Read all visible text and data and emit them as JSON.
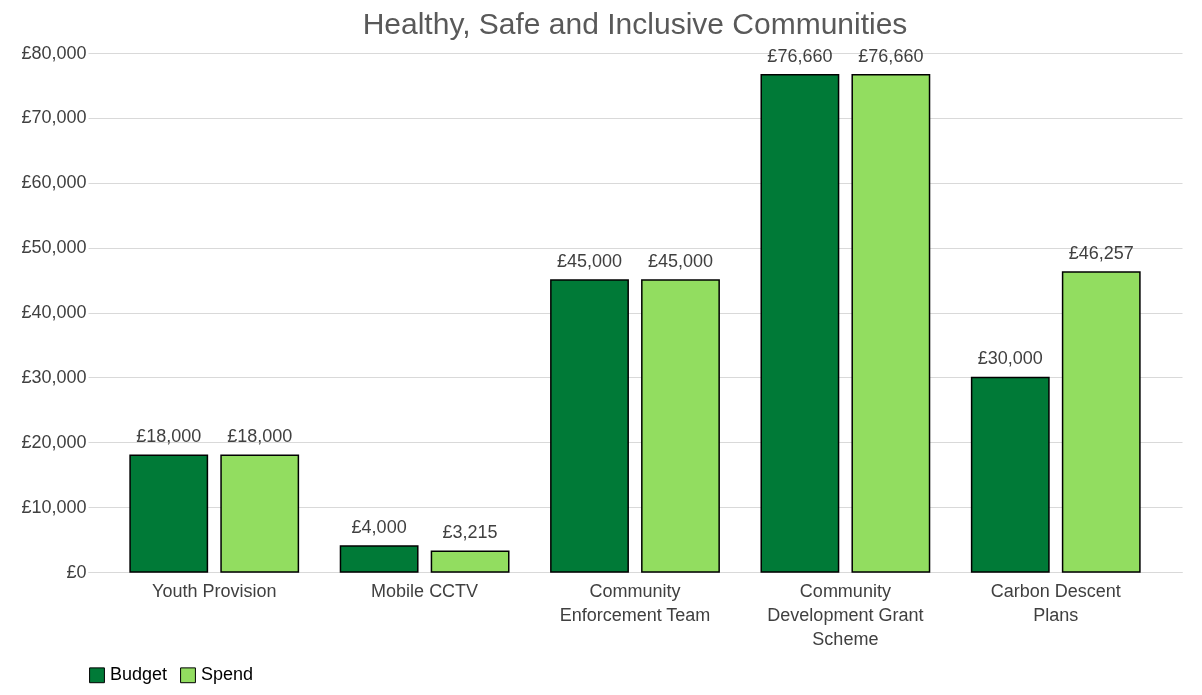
{
  "chart_data": {
    "type": "bar",
    "title": "Healthy, Safe and Inclusive Communities",
    "categories": [
      "Youth Provision",
      "Mobile CCTV",
      "Community Enforcement Team",
      "Community Development Grant Scheme",
      "Carbon Descent Plans"
    ],
    "series": [
      {
        "name": "Budget",
        "color": "#007a37",
        "values": [
          18000,
          4000,
          45000,
          76660,
          30000
        ],
        "value_labels": [
          "£18,000",
          "£4,000",
          "£45,000",
          "£76,660",
          "£30,000"
        ]
      },
      {
        "name": "Spend",
        "color": "#92dd60",
        "values": [
          18000,
          3215,
          45000,
          76660,
          46257
        ],
        "value_labels": [
          "£18,000",
          "£3,215",
          "£45,000",
          "£76,660",
          "£46,257"
        ]
      }
    ],
    "ylim": [
      0,
      80000
    ],
    "yticks": [
      {
        "value": 0,
        "label": "£0"
      },
      {
        "value": 10000,
        "label": "£10,000"
      },
      {
        "value": 20000,
        "label": "£20,000"
      },
      {
        "value": 30000,
        "label": "£30,000"
      },
      {
        "value": 40000,
        "label": "£40,000"
      },
      {
        "value": 50000,
        "label": "£50,000"
      },
      {
        "value": 60000,
        "label": "£60,000"
      },
      {
        "value": 70000,
        "label": "£70,000"
      },
      {
        "value": 80000,
        "label": "£80,000"
      }
    ],
    "grid": "y",
    "legend": "bottom"
  }
}
